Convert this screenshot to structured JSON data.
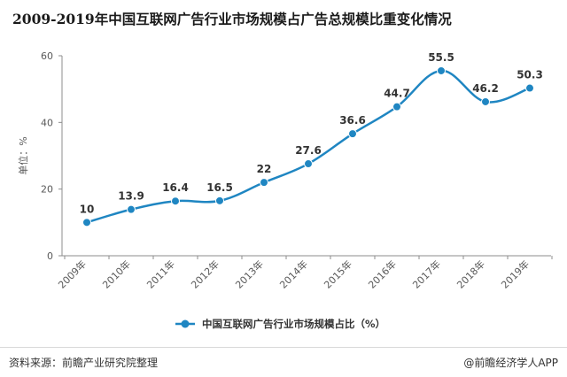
{
  "chart_data": {
    "type": "line",
    "title": "2009-2019年中国互联网广告行业市场规模占广告总规模比重变化情况",
    "ylabel": "单位：%",
    "xlabel": "",
    "categories": [
      "2009年",
      "2010年",
      "2011年",
      "2012年",
      "2013年",
      "2014年",
      "2015年",
      "2016年",
      "2017年",
      "2018年",
      "2019年"
    ],
    "series": [
      {
        "name": "中国互联网广告行业市场规模占比（%）",
        "values": [
          10,
          13.9,
          16.4,
          16.5,
          22,
          27.6,
          36.6,
          44.7,
          55.5,
          46.2,
          50.3
        ]
      }
    ],
    "yticks": [
      0,
      20,
      40,
      60
    ],
    "ylim": [
      0,
      60
    ],
    "grid": false,
    "legend": "bottom-center",
    "line_color": "#1f86c2"
  },
  "footer": {
    "source": "资料来源：前瞻产业研究院整理",
    "brand": "@前瞻经济学人APP"
  }
}
